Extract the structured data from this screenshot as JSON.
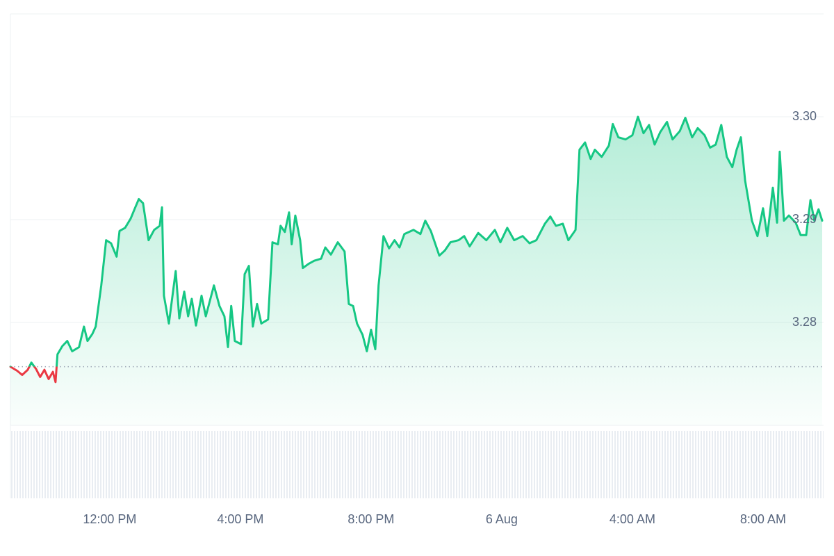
{
  "chart_data": {
    "type": "line",
    "x": [
      8.96,
      9.17,
      9.32,
      9.49,
      9.6,
      9.74,
      9.87,
      10.0,
      10.13,
      10.26,
      10.34,
      10.4,
      10.55,
      10.7,
      10.85,
      11.06,
      11.21,
      11.32,
      11.47,
      11.57,
      11.74,
      11.89,
      12.04,
      12.21,
      12.3,
      12.47,
      12.64,
      12.77,
      12.89,
      13.02,
      13.19,
      13.36,
      13.53,
      13.6,
      13.66,
      13.81,
      14.02,
      14.13,
      14.28,
      14.4,
      14.51,
      14.64,
      14.81,
      14.94,
      15.19,
      15.36,
      15.51,
      15.62,
      15.72,
      15.83,
      16.02,
      16.13,
      16.26,
      16.38,
      16.51,
      16.64,
      16.85,
      16.98,
      17.15,
      17.23,
      17.36,
      17.49,
      17.57,
      17.68,
      17.83,
      17.91,
      18.09,
      18.26,
      18.47,
      18.6,
      18.77,
      18.98,
      19.19,
      19.32,
      19.45,
      19.57,
      19.74,
      19.87,
      20.0,
      20.13,
      20.23,
      20.38,
      20.55,
      20.72,
      20.87,
      21.02,
      21.3,
      21.51,
      21.66,
      21.83,
      22.09,
      22.26,
      22.43,
      22.68,
      22.85,
      23.02,
      23.28,
      23.53,
      23.79,
      23.96,
      24.17,
      24.38,
      24.64,
      24.85,
      25.06,
      25.32,
      25.49,
      25.66,
      25.87,
      26.04,
      26.26,
      26.38,
      26.55,
      26.72,
      26.85,
      27.06,
      27.28,
      27.4,
      27.57,
      27.79,
      28.0,
      28.17,
      28.34,
      28.51,
      28.68,
      28.85,
      29.06,
      29.23,
      29.45,
      29.62,
      29.83,
      30.0,
      30.21,
      30.38,
      30.55,
      30.72,
      30.89,
      31.06,
      31.19,
      31.32,
      31.45,
      31.66,
      31.83,
      32.0,
      32.13,
      32.3,
      32.43,
      32.51,
      32.64,
      32.79,
      33.0,
      33.15,
      33.32,
      33.45,
      33.57,
      33.7,
      33.81
    ],
    "values": [
      3.2757,
      3.2753,
      3.2749,
      3.2754,
      3.2761,
      3.2755,
      3.2747,
      3.2754,
      3.2745,
      3.2752,
      3.2742,
      3.2769,
      3.2777,
      3.2782,
      3.2772,
      3.2776,
      3.2796,
      3.2782,
      3.2789,
      3.2796,
      3.2836,
      3.288,
      3.2877,
      3.2864,
      3.2889,
      3.2892,
      3.2901,
      3.2911,
      3.292,
      3.2916,
      3.288,
      3.289,
      3.2894,
      3.2912,
      3.2826,
      3.2799,
      3.285,
      3.2804,
      3.283,
      3.2806,
      3.2823,
      3.2797,
      3.2826,
      3.2806,
      3.2836,
      3.2816,
      3.2806,
      3.2776,
      3.2816,
      3.2782,
      3.2779,
      3.2847,
      3.2855,
      3.2796,
      3.2818,
      3.2799,
      3.2803,
      3.2878,
      3.2876,
      3.2894,
      3.2888,
      3.2907,
      3.2876,
      3.2904,
      3.288,
      3.2853,
      3.2857,
      3.286,
      3.2862,
      3.2873,
      3.2866,
      3.2878,
      3.2869,
      3.2818,
      3.2816,
      3.2799,
      3.2788,
      3.2772,
      3.2793,
      3.2774,
      3.2836,
      3.2884,
      3.2872,
      3.288,
      3.2873,
      3.2886,
      3.289,
      3.2886,
      3.2899,
      3.2889,
      3.2865,
      3.287,
      3.2878,
      3.288,
      3.2884,
      3.2874,
      3.2887,
      3.288,
      3.289,
      3.2878,
      3.2892,
      3.288,
      3.2884,
      3.2877,
      3.288,
      3.2896,
      3.2903,
      3.2894,
      3.2896,
      3.288,
      3.289,
      3.2968,
      3.2975,
      3.2959,
      3.2968,
      3.2961,
      3.2972,
      3.2993,
      3.298,
      3.2978,
      3.2982,
      3.3,
      3.2984,
      3.2992,
      3.2973,
      3.2985,
      3.2995,
      3.2978,
      3.2986,
      3.2999,
      3.298,
      3.2989,
      3.2982,
      3.297,
      3.2973,
      3.2992,
      3.2961,
      3.2951,
      3.2968,
      3.298,
      3.2938,
      3.2899,
      3.2884,
      3.2911,
      3.2884,
      3.2931,
      3.2897,
      3.2966,
      3.2899,
      3.2904,
      3.2897,
      3.2885,
      3.2885,
      3.2919,
      3.2899,
      3.291,
      3.2899
    ],
    "reference_value": 3.2757,
    "up_color": "#16c784",
    "down_color": "#ea3943",
    "xlim": [
      8.96,
      33.81
    ],
    "xticks": [
      {
        "value": 12,
        "label": "12:00 PM"
      },
      {
        "value": 16,
        "label": "4:00 PM"
      },
      {
        "value": 20,
        "label": "8:00 PM"
      },
      {
        "value": 24,
        "label": "6 Aug"
      },
      {
        "value": 28,
        "label": "4:00 AM"
      },
      {
        "value": 32,
        "label": "8:00 AM"
      }
    ],
    "ylim": [
      3.27,
      3.31
    ],
    "yticks": [
      3.28,
      3.29,
      {
        "value": 3.3,
        "label": "3.30"
      }
    ],
    "grid": true
  }
}
